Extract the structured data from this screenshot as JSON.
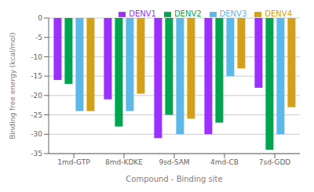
{
  "chart_data": {
    "type": "bar",
    "categories": [
      "1md-GTP",
      "8md-KDKE",
      "9sd-SAM",
      "4md-CB",
      "7sd-GDD"
    ],
    "series": [
      {
        "name": "DENV1",
        "color": "#9B30FF",
        "values": [
          -16.0,
          -21.0,
          -31.0,
          -30.0,
          -18.0
        ]
      },
      {
        "name": "DENV2",
        "color": "#00A550",
        "values": [
          -17.0,
          -28.0,
          -25.0,
          -27.0,
          -34.0
        ]
      },
      {
        "name": "DENV3",
        "color": "#5BB8E8",
        "values": [
          -24.0,
          -24.0,
          -30.0,
          -15.0,
          -30.0
        ]
      },
      {
        "name": "DENV4",
        "color": "#D4A017",
        "values": [
          -24.0,
          -19.5,
          -26.0,
          -13.0,
          -23.0
        ]
      }
    ],
    "xlabel": "Compound - Binding site",
    "ylabel": "Binding free energy (kcal/mol)",
    "ylim": [
      -35,
      0
    ],
    "yticks": [
      0,
      -5,
      -10,
      -15,
      -20,
      -25,
      -30,
      -35
    ],
    "grid": true,
    "legend": "upper right"
  }
}
